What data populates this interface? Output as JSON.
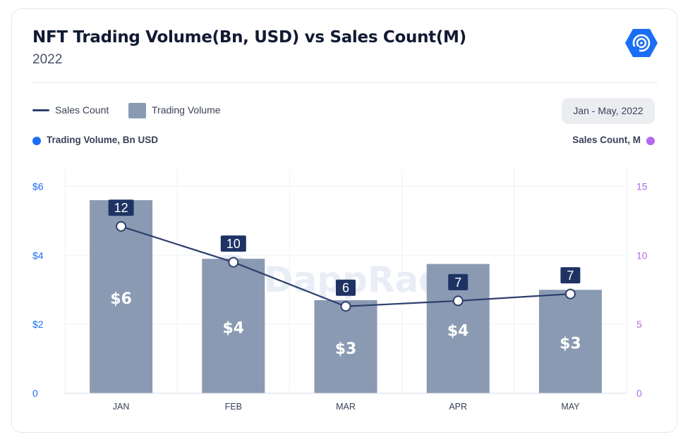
{
  "header": {
    "title": "NFT Trading Volume(Bn, USD) vs Sales Count(M)",
    "subtitle": "2022"
  },
  "legend": {
    "line_label": "Sales Count",
    "bar_label": "Trading Volume"
  },
  "date_range": "Jan - May, 2022",
  "axes": {
    "left_title": "Trading Volume, Bn USD",
    "right_title": "Sales Count, M"
  },
  "watermark": "DappRadar",
  "colors": {
    "bar": "#8a9ab3",
    "line": "#2d3f6c",
    "label_bg": "#1e3364",
    "left_axis": "#1a6ef5",
    "right_axis": "#b468f0",
    "grid": "#eef0f4"
  },
  "chart_data": {
    "type": "bar",
    "categories": [
      "JAN",
      "FEB",
      "MAR",
      "APR",
      "MAY"
    ],
    "series": [
      {
        "name": "Trading Volume",
        "type": "bar",
        "axis": "left",
        "values": [
          5.6,
          3.9,
          2.7,
          3.75,
          3.0
        ],
        "labels": [
          "$6",
          "$4",
          "$3",
          "$4",
          "$3"
        ]
      },
      {
        "name": "Sales Count",
        "type": "line",
        "axis": "right",
        "values": [
          12.1,
          9.5,
          6.3,
          6.7,
          7.2
        ],
        "labels": [
          "12",
          "10",
          "6",
          "7",
          "7"
        ]
      }
    ],
    "y_left": {
      "ylim": [
        0,
        6.5
      ],
      "ticks": [
        0,
        2,
        4,
        6
      ],
      "tick_labels": [
        "0",
        "$2",
        "$4",
        "$6"
      ]
    },
    "y_right": {
      "ylim": [
        0,
        16.25
      ],
      "ticks": [
        0,
        5,
        10,
        15
      ],
      "tick_labels": [
        "0",
        "5",
        "10",
        "15"
      ]
    },
    "grid": true
  }
}
